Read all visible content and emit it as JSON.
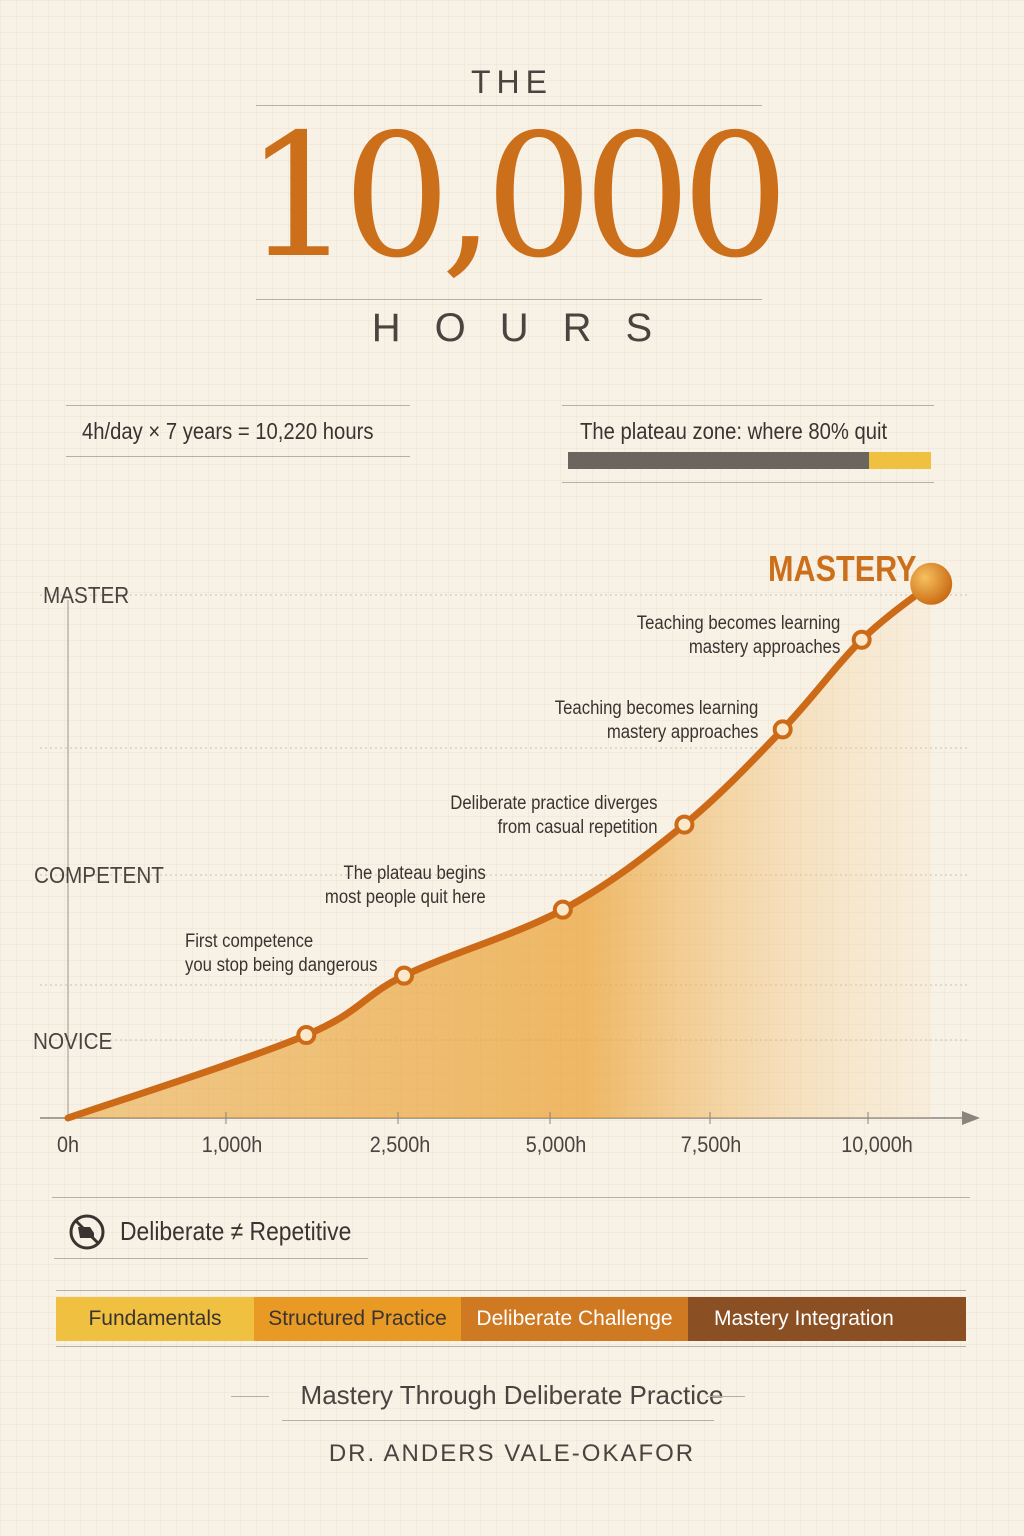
{
  "header": {
    "pre_title": "THE",
    "title": "10,000",
    "post_title": "HOURS"
  },
  "stats": {
    "formula": "4h/day × 7 years = 10,220 hours",
    "plateau_label": "The plateau zone: where 80% quit",
    "plateau_progress": 0.83
  },
  "colors": {
    "accent": "#cc6f1a",
    "bar_dark": "#6b6560",
    "bar_highlight": "#f0c040"
  },
  "chart_data": {
    "type": "area",
    "title": "",
    "peak_label": "MASTERY",
    "xlabel": "",
    "ylabel": "",
    "x_ticks": [
      "0h",
      "1,000h",
      "2,500h",
      "5,000h",
      "7,500h",
      "10,000h"
    ],
    "x_tick_values": [
      0,
      1000,
      2500,
      5000,
      7500,
      10000
    ],
    "y_levels": [
      "NOVICE",
      "COMPETENT",
      "MASTER"
    ],
    "y_level_values": [
      1,
      2,
      3
    ],
    "grid": true,
    "points": [
      {
        "x": 0,
        "y": 0
      },
      {
        "x": 1700,
        "y": 1.03
      },
      {
        "x": 2600,
        "y": 1.39
      },
      {
        "x": 5200,
        "y": 1.79
      },
      {
        "x": 7100,
        "y": 2.18
      },
      {
        "x": 8650,
        "y": 2.52
      },
      {
        "x": 9900,
        "y": 2.84
      },
      {
        "x": 11000,
        "y": 3.04
      }
    ],
    "annotations": [
      {
        "line1": "First competence",
        "line2": "you stop being dangerous"
      },
      {
        "line1": "The plateau begins",
        "line2": "most people quit here"
      },
      {
        "line1": "Deliberate practice diverges",
        "line2": "from casual repetition"
      },
      {
        "line1": "Teaching becomes learning",
        "line2": "mastery approaches"
      },
      {
        "line1": "Teaching becomes learning",
        "line2": "mastery approaches"
      }
    ]
  },
  "principle": {
    "icon": "no-repetition-icon",
    "text": "Deliberate ≠ Repetitive"
  },
  "phases": [
    {
      "label": "Fundamentals",
      "color": "#f0c040"
    },
    {
      "label": "Structured Practice",
      "color": "#e89a25"
    },
    {
      "label": "Deliberate Challenge",
      "color": "#cf7a22"
    },
    {
      "label": "Mastery Integration",
      "color": "#8a4f22"
    }
  ],
  "footer": {
    "tagline": "Mastery Through Deliberate Practice",
    "author": "DR. ANDERS VALE-OKAFOR"
  }
}
